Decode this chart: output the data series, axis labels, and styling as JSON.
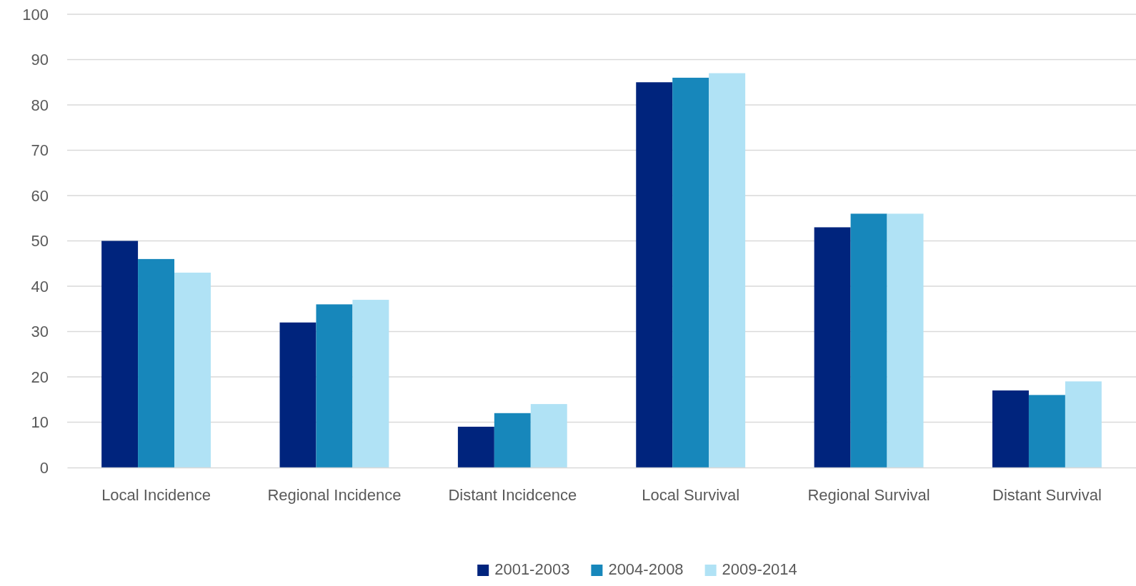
{
  "chart_data": {
    "type": "bar",
    "categories": [
      "Local Incidence",
      "Regional Incidence",
      "Distant Incidcence",
      "Local Survival",
      "Regional Survival",
      "Distant Survival"
    ],
    "series": [
      {
        "name": "2001-2003",
        "color": "#00247d",
        "values": [
          50,
          32,
          9,
          85,
          53,
          17
        ]
      },
      {
        "name": "2004-2008",
        "color": "#1787bb",
        "values": [
          46,
          36,
          12,
          86,
          56,
          16
        ]
      },
      {
        "name": "2009-2014",
        "color": "#b0e2f5",
        "values": [
          43,
          37,
          14,
          87,
          56,
          19
        ]
      }
    ],
    "ylim": [
      0,
      100
    ],
    "yticks": [
      0,
      10,
      20,
      30,
      40,
      50,
      60,
      70,
      80,
      90,
      100
    ],
    "grid": "y",
    "legend": "bottom"
  }
}
